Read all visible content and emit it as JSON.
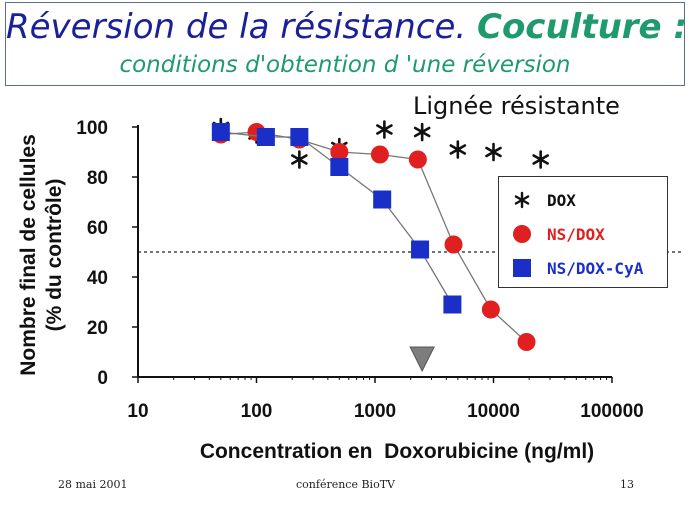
{
  "header": {
    "title_main": "Réversion de la résistance.",
    "title_accent": "Coculture :",
    "title_line2": "conditions d'obtention d 'une réversion"
  },
  "chart_data": {
    "type": "scatter",
    "title": "Réversion de la résistance. Coculture : conditions d'obtention d 'une réversion",
    "subtitle": "Lignée résistante",
    "xlabel": "Concentration en  Doxorubicine (ng/ml)",
    "ylabel_line1": "Nombre final de cellules",
    "ylabel_line2": "(% du contrôle)",
    "x_scale": "log",
    "xlim": [
      10,
      100000
    ],
    "ylim": [
      0,
      100
    ],
    "x_ticks": [
      10,
      100,
      1000,
      10000,
      100000
    ],
    "x_tick_labels": [
      "10",
      "100",
      "1000",
      "10000",
      "100000"
    ],
    "y_ticks": [
      0,
      20,
      40,
      60,
      80,
      100
    ],
    "y_tick_labels": [
      "0",
      "20",
      "40",
      "60",
      "80",
      "100"
    ],
    "reference_line_y": 50,
    "arrow_marker_x": 2500,
    "legend_position": "right",
    "grid": false,
    "series": [
      {
        "name": "DOX",
        "marker": "star",
        "color": "#111111",
        "connected": false,
        "x": [
          50,
          100,
          230,
          500,
          1200,
          2500,
          5000,
          10000,
          25000
        ],
        "y": [
          100,
          97,
          87,
          92,
          99,
          98,
          91,
          90,
          87
        ]
      },
      {
        "name": "NS/DOX",
        "marker": "circle",
        "color": "#e02020",
        "connected": true,
        "x": [
          50,
          100,
          230,
          500,
          1100,
          2300,
          4600,
          9500,
          19000
        ],
        "y": [
          97,
          98,
          95,
          90,
          89,
          87,
          53,
          27,
          14
        ]
      },
      {
        "name": "NS/DOX-CyA",
        "marker": "square",
        "color": "#1a2fc8",
        "connected": true,
        "x": [
          50,
          120,
          230,
          500,
          1150,
          2400,
          4500
        ],
        "y": [
          98,
          96,
          96,
          84,
          71,
          51,
          29
        ]
      }
    ]
  },
  "footer": {
    "date": "28 mai 2001",
    "center": "conférence BioTV",
    "page": "13"
  }
}
